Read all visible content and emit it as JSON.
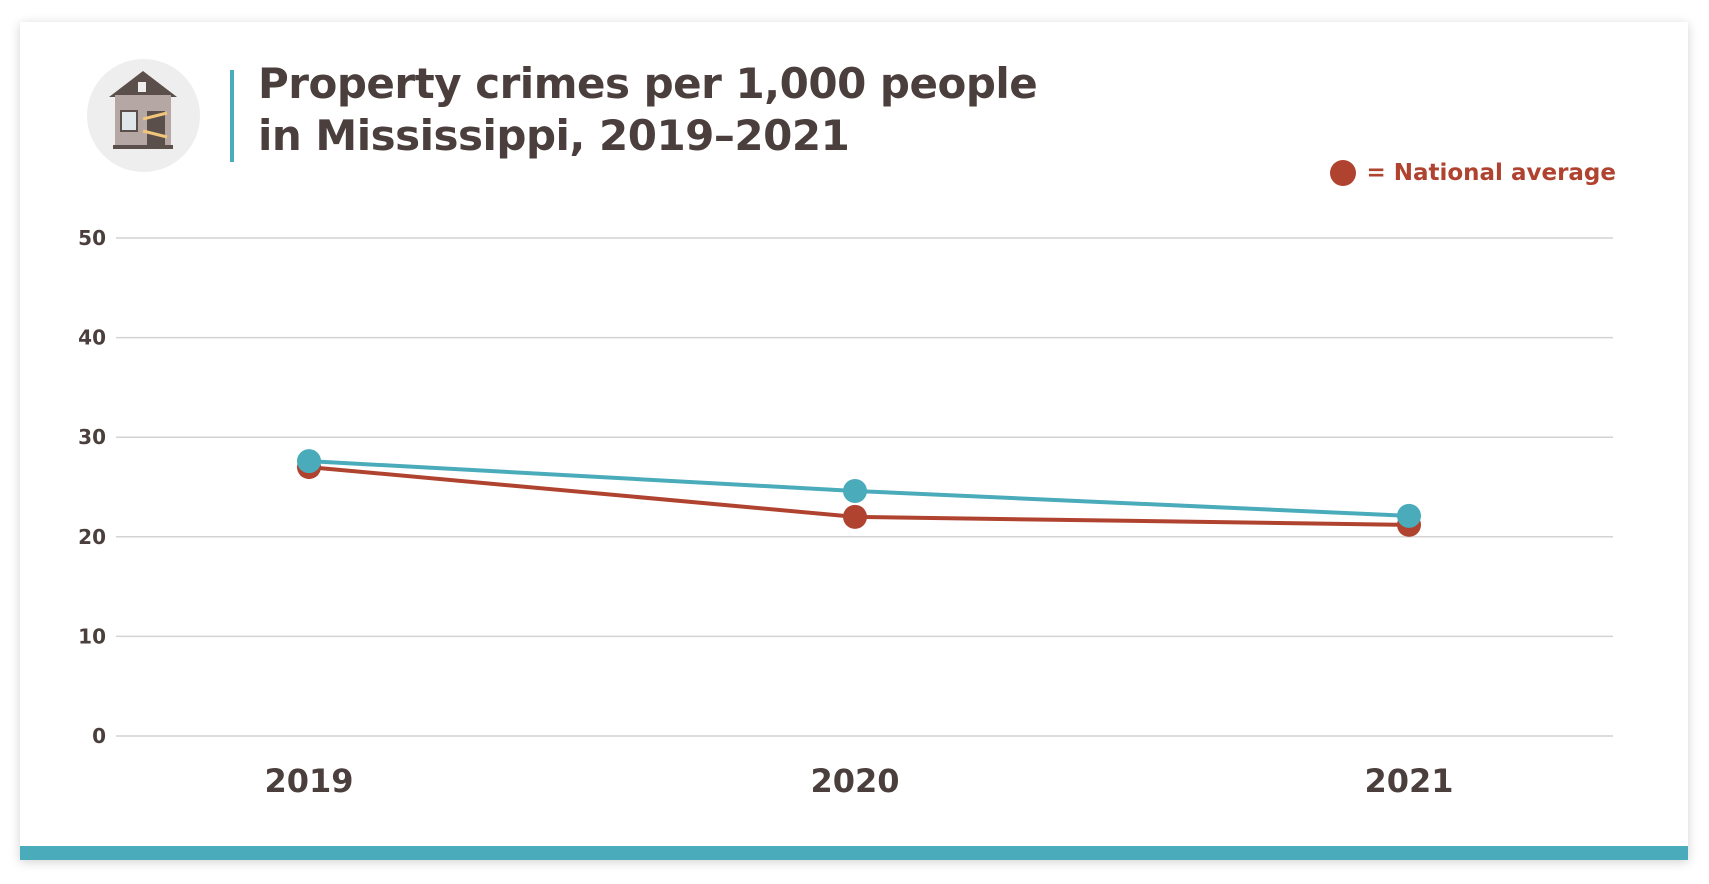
{
  "title_line1": "Property crimes per 1,000 people",
  "title_line2": "in Mississippi, 2019–2021",
  "icon": "burglarized-house-icon",
  "legend": {
    "label": "= National average",
    "color": "#b0432f"
  },
  "chart_data": {
    "type": "line",
    "title": "Property crimes per 1,000 people in Mississippi, 2019–2021",
    "categories": [
      "2019",
      "2020",
      "2021"
    ],
    "ylim": [
      0,
      50
    ],
    "yticks": [
      "0",
      "10",
      "20",
      "30",
      "40",
      "50"
    ],
    "grid": true,
    "legend_position": "top-right",
    "series": [
      {
        "key": "mississippi",
        "color": "#4aacbb",
        "values": [
          27.6,
          24.6,
          22.1
        ]
      },
      {
        "name": "National average",
        "color": "#b0432f",
        "values": [
          27.0,
          22.0,
          21.2
        ]
      }
    ]
  }
}
